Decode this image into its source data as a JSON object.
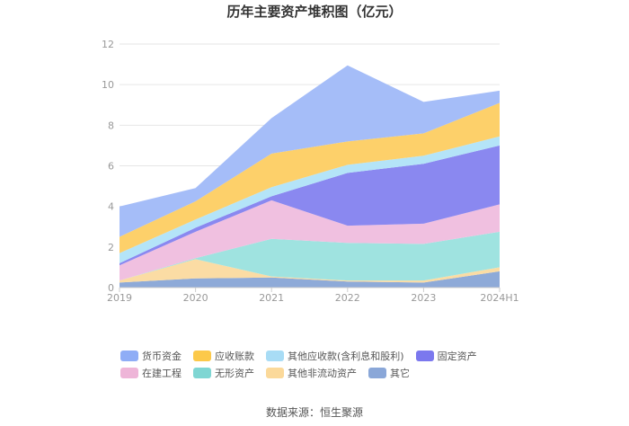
{
  "chart_data": {
    "type": "area",
    "stacked": true,
    "title": "历年主要资产堆积图（亿元）",
    "categories": [
      "2019",
      "2020",
      "2021",
      "2022",
      "2023",
      "2024H1"
    ],
    "y_ticks": [
      "0",
      "2",
      "4",
      "6",
      "8",
      "10",
      "12"
    ],
    "ylim": [
      0,
      12
    ],
    "grid": true,
    "legend_position": "bottom",
    "series": [
      {
        "name": "其它",
        "color": "#8eaad8",
        "values": [
          0.25,
          0.45,
          0.5,
          0.3,
          0.25,
          0.8
        ]
      },
      {
        "name": "其他非流动资产",
        "color": "#fbdca4",
        "values": [
          0.1,
          0.95,
          0.05,
          0.05,
          0.1,
          0.2
        ]
      },
      {
        "name": "无形资产",
        "color": "#9fe3e0",
        "values": [
          0.0,
          0.05,
          1.85,
          1.85,
          1.8,
          1.75
        ]
      },
      {
        "name": "在建工程",
        "color": "#f0c0e0",
        "values": [
          0.75,
          1.3,
          1.9,
          0.85,
          1.0,
          1.35
        ]
      },
      {
        "name": "固定资产",
        "color": "#8a88f0",
        "values": [
          0.1,
          0.2,
          0.2,
          2.6,
          2.95,
          2.9
        ]
      },
      {
        "name": "其他应收款(含利息和股利)",
        "color": "#b4e4f8",
        "values": [
          0.5,
          0.4,
          0.45,
          0.4,
          0.4,
          0.45
        ]
      },
      {
        "name": "应收账款",
        "color": "#fdd06a",
        "values": [
          0.8,
          0.9,
          1.65,
          1.15,
          1.1,
          1.65
        ]
      },
      {
        "name": "货币资金",
        "color": "#a5bdf8",
        "values": [
          1.5,
          0.65,
          1.75,
          3.75,
          1.55,
          0.6
        ]
      }
    ]
  },
  "legend": [
    {
      "label": "货币资金",
      "color": "#8fadf6"
    },
    {
      "label": "应收账款",
      "color": "#fcc94a"
    },
    {
      "label": "其他应收款(含利息和股利)",
      "color": "#a8dcf5"
    },
    {
      "label": "固定资产",
      "color": "#7b78ee"
    },
    {
      "label": "在建工程",
      "color": "#eeb5d8"
    },
    {
      "label": "无形资产",
      "color": "#7fd6d3"
    },
    {
      "label": "其他非流动资产",
      "color": "#fbd99a"
    },
    {
      "label": "其它",
      "color": "#8aa7d8"
    }
  ],
  "source": "数据来源：恒生聚源"
}
